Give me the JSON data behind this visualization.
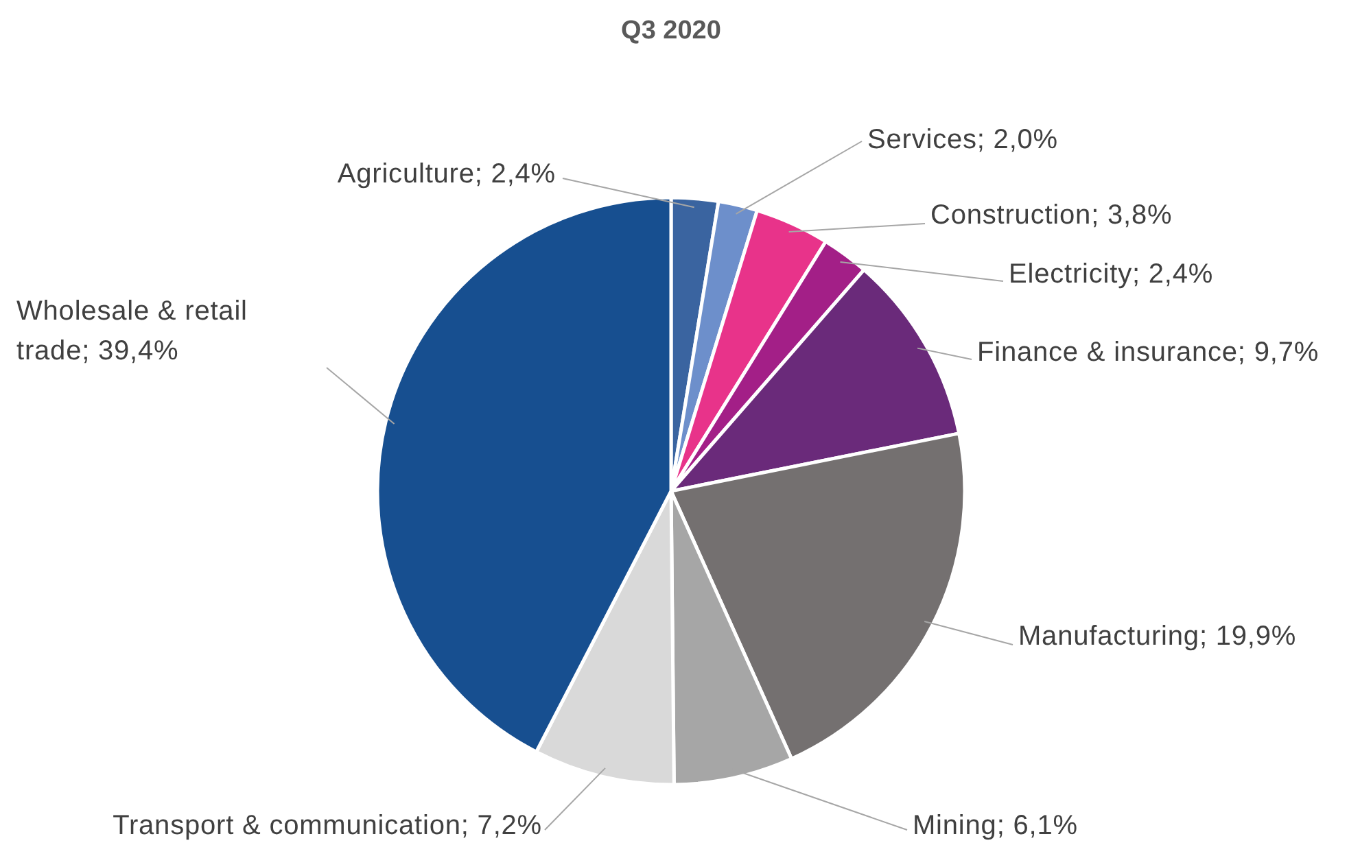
{
  "chart_data": {
    "type": "pie",
    "title": "Q3 2020",
    "categories": [
      "Agriculture",
      "Services",
      "Construction",
      "Electricity",
      "Finance & insurance",
      "Manufacturing",
      "Mining",
      "Transport & communication",
      "Wholesale & retail trade"
    ],
    "values": [
      2.4,
      2.0,
      3.8,
      2.4,
      9.7,
      19.9,
      6.1,
      7.2,
      39.4
    ],
    "value_labels": [
      "2,4%",
      "2,0%",
      "3,8%",
      "2,4%",
      "9,7%",
      "19,9%",
      "6,1%",
      "7,2%",
      "39,4%"
    ],
    "colors": [
      "#3a64a0",
      "#6d8fcb",
      "#e8338a",
      "#a31f87",
      "#6a2a7a",
      "#747070",
      "#a6a6a6",
      "#d9d9d9",
      "#174f90"
    ],
    "legend": false
  }
}
